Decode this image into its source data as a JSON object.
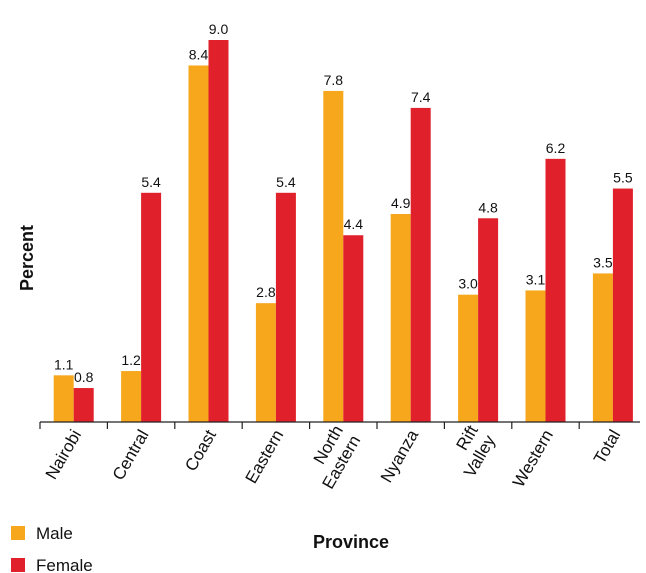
{
  "chart_data": {
    "type": "bar",
    "categories": [
      "Nairobi",
      "Central",
      "Coast",
      "Eastern",
      "North\nEastern",
      "Nyanza",
      "Rift\nValley",
      "Western",
      "Total"
    ],
    "series": [
      {
        "name": "Male",
        "values": [
          1.1,
          1.2,
          8.4,
          2.8,
          7.8,
          4.9,
          3.0,
          3.1,
          3.5
        ],
        "labels": [
          "1.1",
          "1.2",
          "8.4",
          "2.8",
          "7.8",
          "4.9",
          "3.0",
          "3.1",
          "3.5"
        ],
        "color": "#f6a71c"
      },
      {
        "name": "Female",
        "values": [
          0.8,
          5.4,
          9.0,
          5.4,
          4.4,
          7.4,
          4.8,
          6.2,
          5.5
        ],
        "labels": [
          "0.8",
          "5.4",
          "9.0",
          "5.4",
          "4.4",
          "7.4",
          "4.8",
          "6.2",
          "5.5"
        ],
        "color": "#e0202a"
      }
    ],
    "xlabel": "Province",
    "ylabel": "Percent",
    "ylim": [
      0,
      9.0
    ],
    "grid": false,
    "legend_position": "bottom-left"
  }
}
